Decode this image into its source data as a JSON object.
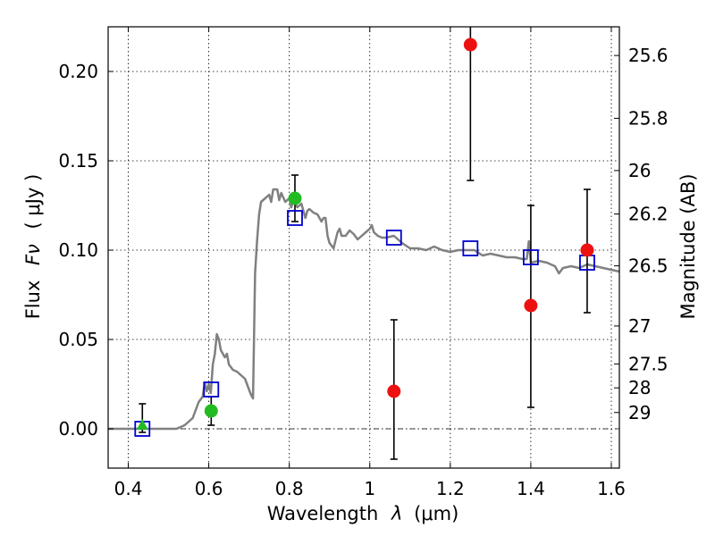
{
  "chart_data": {
    "type": "scatter",
    "title": "",
    "xlabel_text": "Wavelength",
    "xlabel_symbol": "λ",
    "xlabel_unit": "(μm)",
    "ylabel_text": "Flux",
    "ylabel_symbol": "Fν",
    "ylabel_unit": "( μJy )",
    "y2label": "Magnitude (AB)",
    "xlim": [
      0.35,
      1.62
    ],
    "ylim": [
      -0.022,
      0.225
    ],
    "grid": true,
    "x_ticks": [
      {
        "value": 0.4,
        "label": "0.4"
      },
      {
        "value": 0.6,
        "label": "0.6"
      },
      {
        "value": 0.8,
        "label": "0.8"
      },
      {
        "value": 1.0,
        "label": "1"
      },
      {
        "value": 1.2,
        "label": "1.2"
      },
      {
        "value": 1.4,
        "label": "1.4"
      },
      {
        "value": 1.6,
        "label": "1.6"
      }
    ],
    "y_ticks": [
      {
        "value": 0.0,
        "label": "0.00"
      },
      {
        "value": 0.05,
        "label": "0.05"
      },
      {
        "value": 0.1,
        "label": "0.10"
      },
      {
        "value": 0.15,
        "label": "0.15"
      },
      {
        "value": 0.2,
        "label": "0.20"
      }
    ],
    "y2_ticks": [
      {
        "value": 25.6,
        "label": "25.6"
      },
      {
        "value": 25.8,
        "label": "25.8"
      },
      {
        "value": 26.0,
        "label": "26"
      },
      {
        "value": 26.2,
        "label": "26.2"
      },
      {
        "value": 26.5,
        "label": "26.5"
      },
      {
        "value": 27.0,
        "label": "27"
      },
      {
        "value": 27.5,
        "label": "27.5"
      },
      {
        "value": 28.0,
        "label": "28"
      },
      {
        "value": 29.0,
        "label": "29"
      }
    ],
    "model_spectrum": {
      "color": "#808080",
      "points": [
        [
          0.35,
          0.0
        ],
        [
          0.52,
          0.0
        ],
        [
          0.54,
          0.002
        ],
        [
          0.56,
          0.006
        ],
        [
          0.575,
          0.015
        ],
        [
          0.585,
          0.018
        ],
        [
          0.59,
          0.026
        ],
        [
          0.595,
          0.021
        ],
        [
          0.6,
          0.025
        ],
        [
          0.605,
          0.02
        ],
        [
          0.61,
          0.036
        ],
        [
          0.615,
          0.042
        ],
        [
          0.62,
          0.053
        ],
        [
          0.625,
          0.05
        ],
        [
          0.63,
          0.044
        ],
        [
          0.64,
          0.04
        ],
        [
          0.645,
          0.042
        ],
        [
          0.65,
          0.036
        ],
        [
          0.66,
          0.033
        ],
        [
          0.67,
          0.032
        ],
        [
          0.68,
          0.03
        ],
        [
          0.69,
          0.028
        ],
        [
          0.7,
          0.022
        ],
        [
          0.705,
          0.019
        ],
        [
          0.71,
          0.017
        ],
        [
          0.715,
          0.087
        ],
        [
          0.72,
          0.105
        ],
        [
          0.725,
          0.12
        ],
        [
          0.73,
          0.127
        ],
        [
          0.74,
          0.129
        ],
        [
          0.75,
          0.131
        ],
        [
          0.755,
          0.127
        ],
        [
          0.76,
          0.134
        ],
        [
          0.77,
          0.134
        ],
        [
          0.775,
          0.128
        ],
        [
          0.78,
          0.132
        ],
        [
          0.79,
          0.127
        ],
        [
          0.8,
          0.129
        ],
        [
          0.805,
          0.124
        ],
        [
          0.81,
          0.128
        ],
        [
          0.82,
          0.124
        ],
        [
          0.83,
          0.126
        ],
        [
          0.84,
          0.118
        ],
        [
          0.845,
          0.122
        ],
        [
          0.85,
          0.123
        ],
        [
          0.86,
          0.121
        ],
        [
          0.87,
          0.12
        ],
        [
          0.88,
          0.116
        ],
        [
          0.885,
          0.118
        ],
        [
          0.89,
          0.118
        ],
        [
          0.895,
          0.108
        ],
        [
          0.9,
          0.104
        ],
        [
          0.91,
          0.101
        ],
        [
          0.92,
          0.11
        ],
        [
          0.925,
          0.112
        ],
        [
          0.93,
          0.108
        ],
        [
          0.94,
          0.108
        ],
        [
          0.95,
          0.111
        ],
        [
          0.96,
          0.109
        ],
        [
          0.97,
          0.106
        ],
        [
          0.98,
          0.108
        ],
        [
          0.99,
          0.11
        ],
        [
          1.0,
          0.112
        ],
        [
          1.005,
          0.114
        ],
        [
          1.01,
          0.11
        ],
        [
          1.02,
          0.108
        ],
        [
          1.03,
          0.107
        ],
        [
          1.04,
          0.107
        ],
        [
          1.06,
          0.108
        ],
        [
          1.08,
          0.104
        ],
        [
          1.1,
          0.101
        ],
        [
          1.12,
          0.101
        ],
        [
          1.14,
          0.1
        ],
        [
          1.16,
          0.102
        ],
        [
          1.18,
          0.1
        ],
        [
          1.2,
          0.099
        ],
        [
          1.22,
          0.1
        ],
        [
          1.24,
          0.1
        ],
        [
          1.26,
          0.1
        ],
        [
          1.28,
          0.097
        ],
        [
          1.3,
          0.098
        ],
        [
          1.32,
          0.097
        ],
        [
          1.34,
          0.096
        ],
        [
          1.36,
          0.096
        ],
        [
          1.38,
          0.095
        ],
        [
          1.39,
          0.095
        ],
        [
          1.395,
          0.105
        ],
        [
          1.4,
          0.093
        ],
        [
          1.42,
          0.094
        ],
        [
          1.44,
          0.093
        ],
        [
          1.46,
          0.091
        ],
        [
          1.47,
          0.087
        ],
        [
          1.48,
          0.09
        ],
        [
          1.5,
          0.091
        ],
        [
          1.52,
          0.09
        ],
        [
          1.54,
          0.092
        ],
        [
          1.56,
          0.091
        ],
        [
          1.58,
          0.09
        ],
        [
          1.6,
          0.089
        ],
        [
          1.62,
          0.088
        ]
      ]
    },
    "model_photometry": {
      "marker": "open-square",
      "color": "#0000cc",
      "points": [
        [
          0.435,
          0.0
        ],
        [
          0.606,
          0.022
        ],
        [
          0.814,
          0.118
        ],
        [
          1.06,
          0.107
        ],
        [
          1.25,
          0.101
        ],
        [
          1.4,
          0.096
        ],
        [
          1.54,
          0.093
        ]
      ]
    },
    "detections": {
      "marker": "filled-circle",
      "color": "#22bb22",
      "points": [
        [
          0.606,
          0.01
        ],
        [
          0.814,
          0.129
        ]
      ]
    },
    "upper_limit": {
      "marker": "filled-triangle",
      "color": "#22bb22",
      "points": [
        [
          0.435,
          0.002
        ]
      ]
    },
    "low_sn_points": {
      "marker": "filled-circle",
      "color": "#ee1111",
      "points": [
        [
          1.06,
          0.021
        ],
        [
          1.25,
          0.215
        ],
        [
          1.4,
          0.069
        ],
        [
          1.54,
          0.1
        ]
      ]
    },
    "error_bars": [
      {
        "x": 0.435,
        "low": -0.002,
        "high": 0.014
      },
      {
        "x": 0.606,
        "low": 0.002,
        "high": 0.018
      },
      {
        "x": 0.814,
        "low": 0.116,
        "high": 0.142
      },
      {
        "x": 1.06,
        "low": -0.017,
        "high": 0.061
      },
      {
        "x": 1.25,
        "low": 0.139,
        "high": 0.225
      },
      {
        "x": 1.4,
        "low": 0.012,
        "high": 0.125
      },
      {
        "x": 1.54,
        "low": 0.065,
        "high": 0.134
      }
    ]
  }
}
